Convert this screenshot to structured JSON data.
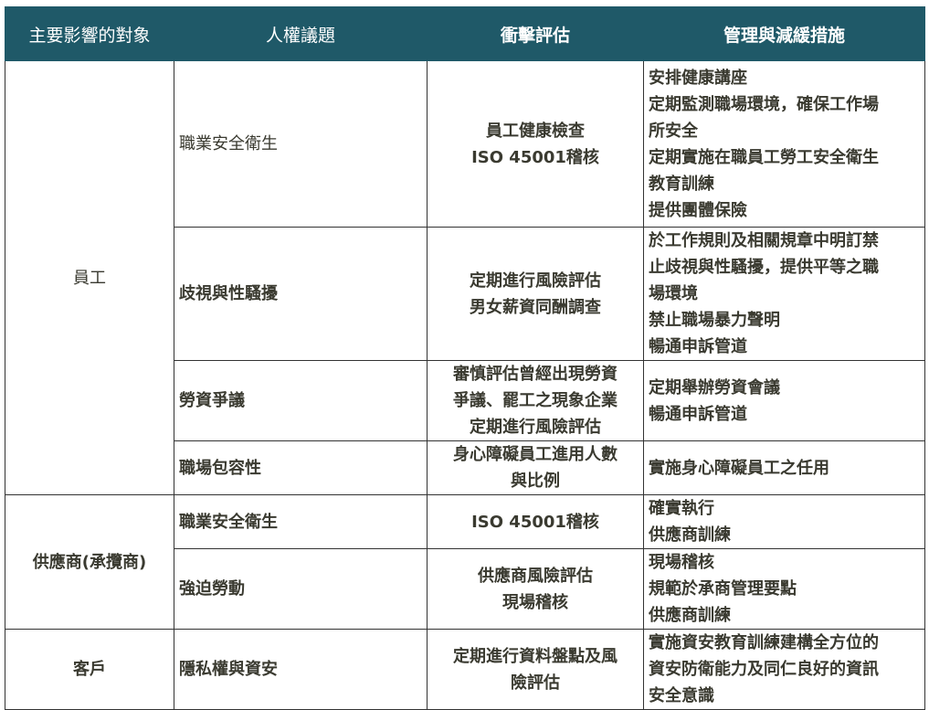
{
  "header": [
    "主要影響的對象",
    "人權議題",
    "衝擊評估",
    "管理與減緩措施"
  ],
  "groups": [
    {
      "target": "員工",
      "rows": [
        {
          "issue": "職業安全衛生",
          "assessment": [
            "員工健康檢查",
            "ISO 45001稽核"
          ],
          "measures": [
            "安排健康講座",
            "定期監測職場環境，確保工作場",
            "所安全",
            "定期實施在職員工勞工安全衛生",
            "教育訓練",
            "提供團體保險"
          ]
        },
        {
          "issue": "歧視與性騷擾",
          "assessment": [
            "定期進行風險評估",
            "男女薪資同酬調查"
          ],
          "measures": [
            "於工作規則及相關規章中明訂禁",
            "止歧視與性騷擾，提供平等之職",
            "場環境",
            "禁止職場暴力聲明",
            "暢通申訴管道"
          ]
        },
        {
          "issue": "勞資爭議",
          "assessment": [
            "審慎評估曾經出現勞資",
            "爭議、罷工之現象企業",
            "定期進行風險評估"
          ],
          "measures": [
            "定期舉辦勞資會議",
            "暢通申訴管道"
          ]
        },
        {
          "issue": "職場包容性",
          "assessment": [
            "身心障礙員工進用人數",
            "與比例"
          ],
          "measures": [
            "實施身心障礙員工之任用"
          ]
        }
      ]
    },
    {
      "target": "供應商(承攬商)",
      "rows": [
        {
          "issue": "職業安全衛生",
          "assessment": [
            "ISO 45001稽核"
          ],
          "measures": [
            "確實執行",
            "供應商訓練"
          ]
        },
        {
          "issue": "強迫勞動",
          "assessment": [
            "供應商風險評估",
            "現場稽核"
          ],
          "measures": [
            "現場稽核",
            "規範於承商管理要點",
            "供應商訓練"
          ]
        }
      ]
    },
    {
      "target": "客戶",
      "rows": [
        {
          "issue": "隱私權與資安",
          "assessment": [
            "定期進行資料盤點及風",
            "險評估"
          ],
          "measures": [
            "實施資安教育訓練建構全方位的",
            "資安防衛能力及同仁良好的資訊",
            "安全意識"
          ]
        }
      ]
    }
  ],
  "colors": {
    "header_bg": "#1f5968",
    "header_text": "#ffffff",
    "border": "#333333"
  }
}
